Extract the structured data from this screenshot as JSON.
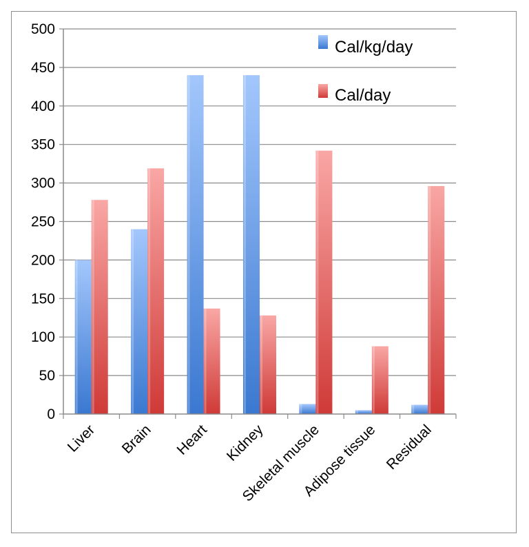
{
  "chart_data": {
    "type": "bar",
    "categories": [
      "Liver",
      "Brain",
      "Heart",
      "Kidney",
      "Skeletal muscle",
      "Adipose tissue",
      "Residual"
    ],
    "series": [
      {
        "name": "Cal/kg/day",
        "values": [
          200,
          240,
          440,
          440,
          13,
          5,
          12
        ],
        "color": "#4f86d8",
        "color_light": "#9fc3fb"
      },
      {
        "name": "Cal/day",
        "values": [
          278,
          319,
          137,
          128,
          342,
          88,
          296
        ],
        "color": "#d43e3b",
        "color_light": "#f8a3a1"
      }
    ],
    "ylim": [
      0,
      500
    ],
    "yticks": [
      "0",
      "50",
      "100",
      "150",
      "200",
      "250",
      "300",
      "350",
      "400",
      "450",
      "500"
    ],
    "grid": true,
    "legend_position": "top-right",
    "title": "",
    "xlabel": "",
    "ylabel": ""
  }
}
